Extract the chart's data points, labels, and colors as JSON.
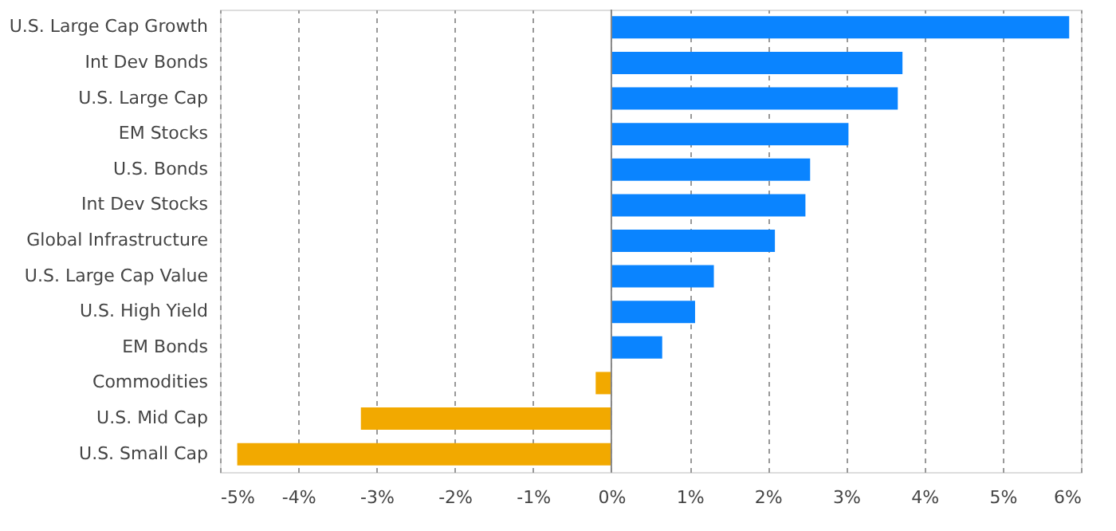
{
  "chart_data": {
    "type": "bar",
    "orientation": "horizontal",
    "categories": [
      "U.S. Large Cap Growth",
      "Int Dev Bonds",
      "U.S. Large Cap",
      "EM Stocks",
      "U.S. Bonds",
      "Int Dev Stocks",
      "Global Infrastructure",
      "U.S. Large Cap Value",
      "U.S. High Yield",
      "EM Bonds",
      "Commodities",
      "U.S. Mid Cap",
      "U.S. Small Cap"
    ],
    "values": [
      5.85,
      3.72,
      3.66,
      3.03,
      2.54,
      2.48,
      2.09,
      1.31,
      1.07,
      0.65,
      -0.2,
      -3.2,
      -4.78
    ],
    "colors": [
      "#0a84ff",
      "#0a84ff",
      "#0a84ff",
      "#0a84ff",
      "#0a84ff",
      "#0a84ff",
      "#0a84ff",
      "#0a84ff",
      "#0a84ff",
      "#0a84ff",
      "#f2a900",
      "#f2a900",
      "#f2a900"
    ],
    "xlim": [
      -5,
      6
    ],
    "xticks": [
      {
        "value": -5,
        "label": "-5%"
      },
      {
        "value": -4,
        "label": "-4%"
      },
      {
        "value": -3,
        "label": "-3%"
      },
      {
        "value": -2,
        "label": "-2%"
      },
      {
        "value": -1,
        "label": "-1%"
      },
      {
        "value": 0,
        "label": "0%"
      },
      {
        "value": 1,
        "label": "1%"
      },
      {
        "value": 2,
        "label": "2%"
      },
      {
        "value": 3,
        "label": "3%"
      },
      {
        "value": 4,
        "label": "4%"
      },
      {
        "value": 5,
        "label": "5%"
      },
      {
        "value": 6,
        "label": "6%"
      }
    ],
    "grid": "x",
    "ref_lines": [
      {
        "axis": "x",
        "value": 0,
        "color": "#888888"
      }
    ]
  }
}
